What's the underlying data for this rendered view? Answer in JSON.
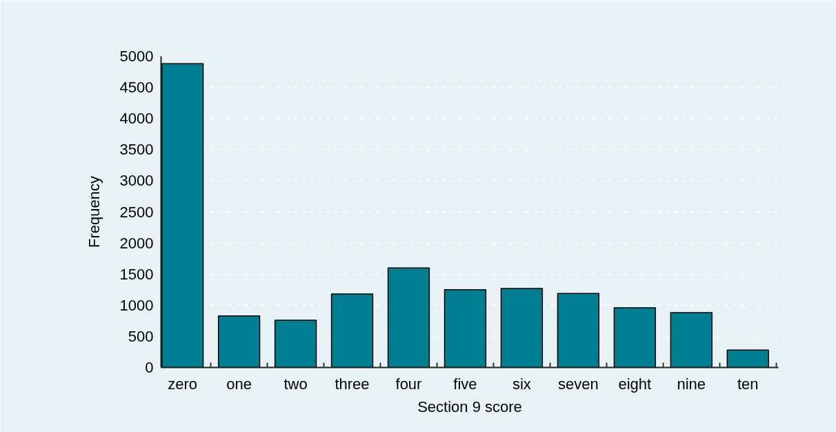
{
  "chart_data": {
    "type": "bar",
    "xlabel": "Section 9 score",
    "ylabel": "Frequency",
    "categories": [
      "zero",
      "one",
      "two",
      "three",
      "four",
      "five",
      "six",
      "seven",
      "eight",
      "nine",
      "ten"
    ],
    "values": [
      4880,
      830,
      760,
      1180,
      1600,
      1250,
      1270,
      1190,
      960,
      880,
      280
    ],
    "color": "#007f92",
    "ylim": [
      0,
      5000
    ],
    "yticks": [
      0,
      500,
      1000,
      1500,
      2000,
      2500,
      3000,
      3500,
      4000,
      4500,
      5000
    ],
    "grid": "y"
  }
}
